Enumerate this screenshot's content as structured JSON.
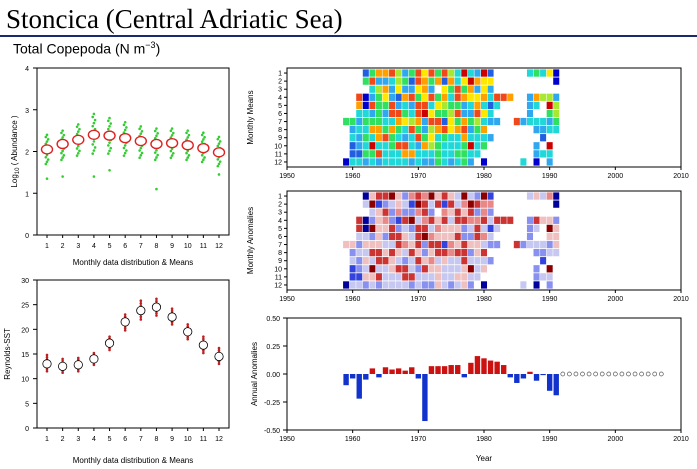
{
  "header": {
    "title": "Stoncica (Central Adriatic Sea)",
    "subtitle_main": "Total Copepoda (N m",
    "subtitle_sup": "−3",
    "subtitle_end": ")"
  },
  "colors": {
    "mean_circle": "#dd2222",
    "dots_abundance": "#33cc33",
    "dots_sst": "#bb2222",
    "anomaly_positive": "#cc1111",
    "anomaly_negative": "#1133cc",
    "rule": "#1a2a6c"
  },
  "chart_data": [
    {
      "id": "abundance_means",
      "type": "scatter",
      "ylabel_main": "Log",
      "ylabel_sub": "10",
      "ylabel_end": " ( Abundance )",
      "xlabel": "Monthly data distribution & Means",
      "x": [
        1,
        2,
        3,
        4,
        5,
        6,
        7,
        8,
        9,
        10,
        11,
        12
      ],
      "y_mean": [
        2.05,
        2.18,
        2.28,
        2.4,
        2.38,
        2.32,
        2.25,
        2.18,
        2.2,
        2.15,
        2.08,
        1.98
      ],
      "y_range_low": [
        1.7,
        1.8,
        1.9,
        1.95,
        1.95,
        1.9,
        1.85,
        1.8,
        1.85,
        1.8,
        1.75,
        1.65
      ],
      "y_range_high": [
        2.4,
        2.5,
        2.65,
        2.9,
        2.8,
        2.7,
        2.6,
        2.55,
        2.55,
        2.5,
        2.45,
        2.35
      ],
      "outliers": [
        [
          1,
          1.35
        ],
        [
          2,
          1.4
        ],
        [
          4,
          1.4
        ],
        [
          5,
          1.55
        ],
        [
          8,
          1.1
        ],
        [
          12,
          1.45
        ]
      ],
      "ylim": [
        0,
        4
      ],
      "yticks": [
        "0",
        "1",
        "2",
        "3",
        "4"
      ],
      "xticks": [
        "1",
        "2",
        "3",
        "4",
        "5",
        "6",
        "7",
        "8",
        "9",
        "10",
        "11",
        "12"
      ]
    },
    {
      "id": "sst_means",
      "type": "scatter",
      "ylabel": "Reynolds-SST",
      "xlabel": "Monthly data distribution & Means",
      "x": [
        1,
        2,
        3,
        4,
        5,
        6,
        7,
        8,
        9,
        10,
        11,
        12
      ],
      "y_mean": [
        13.0,
        12.5,
        12.8,
        14.0,
        17.2,
        21.5,
        23.8,
        24.5,
        22.5,
        19.5,
        16.8,
        14.5
      ],
      "y_range_low": [
        11.5,
        11.2,
        11.5,
        12.8,
        15.8,
        19.8,
        22.0,
        22.8,
        21.0,
        18.0,
        15.2,
        13.0
      ],
      "y_range_high": [
        14.8,
        14.0,
        14.2,
        15.2,
        18.5,
        23.0,
        25.8,
        26.2,
        24.2,
        21.0,
        18.5,
        16.2
      ],
      "ylim": [
        0,
        30
      ],
      "yticks": [
        "0",
        "5",
        "10",
        "15",
        "20",
        "25",
        "30"
      ],
      "xticks": [
        "1",
        "2",
        "3",
        "4",
        "5",
        "6",
        "7",
        "8",
        "9",
        "10",
        "11",
        "12"
      ]
    },
    {
      "id": "monthly_means_grid",
      "type": "heatmap",
      "ylabel": "Monthly Means",
      "months": [
        "1",
        "2",
        "3",
        "4",
        "5",
        "6",
        "7",
        "8",
        "9",
        "10",
        "11",
        "12"
      ],
      "xlim": [
        1950,
        2010
      ],
      "xticks": [
        "1950",
        "1960",
        "1970",
        "1980",
        "1990",
        "2000",
        "2010"
      ],
      "years": [
        1959,
        1960,
        1961,
        1962,
        1963,
        1964,
        1965,
        1966,
        1967,
        1968,
        1969,
        1970,
        1971,
        1972,
        1973,
        1974,
        1975,
        1976,
        1977,
        1978,
        1979,
        1980,
        1981,
        1982,
        1983,
        1984,
        1985,
        1986,
        1987,
        1988,
        1989,
        1990,
        1991
      ],
      "palette": [
        "#0000cc",
        "#1f5fe0",
        "#2fa8f0",
        "#20d8d8",
        "#30e060",
        "#a8e830",
        "#ffe800",
        "#ffa000",
        "#f04818",
        "#cc0000"
      ],
      "note": "values are palette indices 0-9; -1 = no data",
      "values": [
        [
          -1,
          -1,
          -1,
          1,
          4,
          7,
          7,
          8,
          5,
          2,
          4,
          8,
          6,
          8,
          4,
          8,
          5,
          3,
          9,
          3,
          2,
          9,
          1,
          -1,
          -1,
          -1,
          -1,
          -1,
          3,
          4,
          3,
          6,
          0
        ],
        [
          -1,
          -1,
          -1,
          4,
          8,
          2,
          2,
          3,
          5,
          4,
          1,
          8,
          7,
          4,
          7,
          1,
          7,
          3,
          6,
          9,
          7,
          6,
          6,
          -1,
          -1,
          -1,
          -1,
          -1,
          -1,
          -1,
          -1,
          -1,
          0
        ],
        [
          -1,
          -1,
          -1,
          -1,
          3,
          5,
          7,
          2,
          6,
          2,
          2,
          6,
          7,
          2,
          -1,
          6,
          4,
          8,
          4,
          7,
          2,
          6,
          2,
          -1,
          -1,
          -1,
          -1,
          -1,
          -1,
          -1,
          -1,
          -1,
          -1
        ],
        [
          -1,
          -1,
          8,
          0,
          2,
          4,
          6,
          2,
          1,
          7,
          8,
          4,
          6,
          8,
          4,
          7,
          3,
          8,
          7,
          6,
          6,
          7,
          3,
          8,
          8,
          7,
          -1,
          -1,
          2,
          7,
          5,
          5,
          2
        ],
        [
          -1,
          -1,
          7,
          0,
          8,
          4,
          4,
          8,
          2,
          3,
          2,
          8,
          8,
          3,
          6,
          5,
          4,
          4,
          2,
          3,
          7,
          3,
          1,
          3,
          -1,
          -1,
          -1,
          -1,
          2,
          3,
          -1,
          9,
          5
        ],
        [
          -1,
          -1,
          3,
          3,
          2,
          4,
          2,
          8,
          8,
          4,
          3,
          8,
          9,
          6,
          4,
          4,
          5,
          8,
          2,
          2,
          8,
          6,
          3,
          -1,
          -1,
          -1,
          -1,
          -1,
          2,
          -1,
          -1,
          4,
          5
        ],
        [
          4,
          4,
          2,
          4,
          4,
          4,
          3,
          3,
          7,
          6,
          5,
          7,
          2,
          8,
          8,
          1,
          6,
          4,
          7,
          4,
          5,
          3,
          2,
          2,
          -1,
          -1,
          8,
          2,
          3,
          3,
          3,
          2,
          4
        ],
        [
          -1,
          2,
          3,
          3,
          7,
          7,
          4,
          7,
          4,
          3,
          8,
          4,
          2,
          5,
          7,
          8,
          6,
          7,
          8,
          2,
          4,
          7,
          -1,
          -1,
          -1,
          -1,
          -1,
          -1,
          -1,
          2,
          2,
          3,
          3
        ],
        [
          -1,
          3,
          2,
          4,
          3,
          7,
          8,
          4,
          3,
          2,
          3,
          8,
          4,
          6,
          3,
          4,
          3,
          3,
          7,
          3,
          3,
          3,
          2,
          -1,
          -1,
          -1,
          -1,
          -1,
          -1,
          -1,
          1,
          -1,
          -1
        ],
        [
          -1,
          1,
          2,
          3,
          9,
          3,
          3,
          4,
          8,
          8,
          3,
          2,
          7,
          5,
          4,
          3,
          3,
          3,
          4,
          9,
          3,
          4,
          -1,
          -1,
          -1,
          -1,
          -1,
          -1,
          -1,
          2,
          -1,
          9,
          -1
        ],
        [
          -1,
          1,
          1,
          4,
          4,
          8,
          3,
          3,
          3,
          7,
          7,
          3,
          3,
          3,
          4,
          3,
          3,
          4,
          4,
          3,
          3,
          -1,
          -1,
          -1,
          -1,
          -1,
          -1,
          -1,
          -1,
          2,
          3,
          3,
          -1
        ],
        [
          0,
          3,
          3,
          2,
          3,
          2,
          3,
          3,
          3,
          3,
          2,
          3,
          2,
          2,
          4,
          3,
          2,
          3,
          4,
          2,
          -1,
          0,
          -1,
          -1,
          -1,
          -1,
          -1,
          3,
          -1,
          0,
          -1,
          2,
          -1
        ]
      ]
    },
    {
      "id": "monthly_anomalies_grid",
      "type": "heatmap",
      "ylabel": "Monthly Anomalies",
      "months": [
        "1",
        "2",
        "3",
        "4",
        "5",
        "6",
        "7",
        "8",
        "9",
        "10",
        "11",
        "12"
      ],
      "xlim": [
        1950,
        2010
      ],
      "xticks": [
        "1950",
        "1960",
        "1970",
        "1980",
        "1990",
        "2000",
        "2010"
      ],
      "years": [
        1959,
        1960,
        1961,
        1962,
        1963,
        1964,
        1965,
        1966,
        1967,
        1968,
        1969,
        1970,
        1971,
        1972,
        1973,
        1974,
        1975,
        1976,
        1977,
        1978,
        1979,
        1980,
        1981,
        1982,
        1983,
        1984,
        1985,
        1986,
        1987,
        1988,
        1989,
        1990,
        1991
      ],
      "palette": [
        "#00009a",
        "#3344dd",
        "#8890f0",
        "#c6c8f2",
        "#f0c0c0",
        "#e88888",
        "#cc3333",
        "#8a0000"
      ],
      "note": "values are palette indices 0-7 (blue=negative, red=positive); -1 = no data",
      "values": [
        [
          -1,
          -1,
          -1,
          0,
          4,
          6,
          6,
          7,
          4,
          2,
          5,
          6,
          5,
          7,
          4,
          6,
          4,
          3,
          7,
          3,
          2,
          7,
          1,
          -1,
          -1,
          -1,
          -1,
          -1,
          3,
          4,
          3,
          5,
          0
        ],
        [
          -1,
          -1,
          -1,
          3,
          7,
          1,
          2,
          3,
          4,
          3,
          1,
          7,
          6,
          3,
          6,
          1,
          6,
          3,
          5,
          7,
          6,
          5,
          5,
          -1,
          -1,
          -1,
          -1,
          -1,
          -1,
          -1,
          -1,
          -1,
          0
        ],
        [
          -1,
          -1,
          -1,
          -1,
          3,
          4,
          6,
          2,
          5,
          2,
          2,
          5,
          6,
          2,
          -1,
          5,
          4,
          6,
          4,
          6,
          2,
          5,
          2,
          -1,
          -1,
          -1,
          -1,
          -1,
          -1,
          -1,
          -1,
          -1,
          -1
        ],
        [
          -1,
          -1,
          6,
          0,
          2,
          4,
          5,
          2,
          1,
          6,
          7,
          3,
          5,
          6,
          4,
          6,
          3,
          6,
          6,
          5,
          5,
          6,
          3,
          6,
          6,
          6,
          -1,
          -1,
          2,
          6,
          4,
          4,
          2
        ],
        [
          -1,
          -1,
          6,
          0,
          7,
          4,
          4,
          6,
          2,
          3,
          2,
          6,
          6,
          3,
          5,
          4,
          4,
          4,
          2,
          3,
          6,
          3,
          1,
          3,
          -1,
          -1,
          -1,
          -1,
          2,
          3,
          -1,
          7,
          4
        ],
        [
          -1,
          -1,
          3,
          3,
          2,
          4,
          2,
          6,
          6,
          4,
          3,
          6,
          7,
          5,
          4,
          4,
          4,
          6,
          2,
          2,
          6,
          5,
          3,
          -1,
          -1,
          -1,
          -1,
          -1,
          2,
          -1,
          -1,
          4,
          4
        ],
        [
          4,
          4,
          2,
          4,
          4,
          4,
          3,
          3,
          6,
          5,
          4,
          6,
          2,
          6,
          6,
          1,
          5,
          4,
          6,
          4,
          4,
          3,
          2,
          2,
          -1,
          -1,
          6,
          2,
          3,
          3,
          3,
          2,
          4
        ],
        [
          -1,
          2,
          3,
          3,
          6,
          6,
          4,
          6,
          4,
          3,
          6,
          4,
          2,
          4,
          6,
          6,
          5,
          6,
          6,
          2,
          4,
          6,
          -1,
          -1,
          -1,
          -1,
          -1,
          -1,
          -1,
          2,
          2,
          3,
          3
        ],
        [
          -1,
          3,
          2,
          4,
          3,
          6,
          6,
          4,
          3,
          2,
          3,
          6,
          4,
          5,
          3,
          4,
          3,
          3,
          6,
          3,
          3,
          3,
          2,
          -1,
          -1,
          -1,
          -1,
          -1,
          -1,
          -1,
          1,
          -1,
          -1
        ],
        [
          -1,
          1,
          2,
          3,
          7,
          3,
          3,
          4,
          6,
          6,
          3,
          2,
          6,
          4,
          4,
          3,
          3,
          3,
          4,
          7,
          3,
          4,
          -1,
          -1,
          -1,
          -1,
          -1,
          -1,
          -1,
          2,
          -1,
          7,
          -1
        ],
        [
          -1,
          1,
          1,
          4,
          4,
          6,
          3,
          3,
          3,
          6,
          6,
          3,
          3,
          3,
          4,
          3,
          3,
          4,
          4,
          3,
          3,
          -1,
          -1,
          -1,
          -1,
          -1,
          -1,
          -1,
          -1,
          2,
          3,
          3,
          -1
        ],
        [
          0,
          3,
          3,
          2,
          3,
          2,
          3,
          3,
          3,
          3,
          2,
          3,
          2,
          2,
          4,
          3,
          2,
          3,
          4,
          2,
          -1,
          0,
          -1,
          -1,
          -1,
          -1,
          -1,
          3,
          -1,
          0,
          -1,
          2,
          -1
        ]
      ]
    },
    {
      "id": "annual_anomalies",
      "type": "bar",
      "ylabel": "Annual Anomalies",
      "xlabel": "Year",
      "xlim": [
        1950,
        2010
      ],
      "ylim": [
        -0.5,
        0.5
      ],
      "yticks": [
        "0.50",
        "0.25",
        "0.00",
        "-0.25",
        "-0.50"
      ],
      "ytick_values": [
        0.5,
        0.25,
        0,
        -0.25,
        -0.5
      ],
      "xticks": [
        "1950",
        "1960",
        "1970",
        "1980",
        "1990",
        "2000",
        "2010"
      ],
      "years": [
        1959,
        1960,
        1961,
        1962,
        1963,
        1964,
        1965,
        1966,
        1967,
        1968,
        1969,
        1970,
        1971,
        1972,
        1973,
        1974,
        1975,
        1976,
        1977,
        1978,
        1979,
        1980,
        1981,
        1982,
        1983,
        1984,
        1985,
        1986,
        1987,
        1988,
        1989,
        1990,
        1991
      ],
      "values": [
        -0.1,
        -0.04,
        -0.22,
        -0.05,
        0.05,
        -0.03,
        0.06,
        0.04,
        0.05,
        0.03,
        0.06,
        -0.04,
        -0.42,
        0.07,
        0.07,
        0.07,
        0.08,
        0.08,
        -0.03,
        0.1,
        0.16,
        0.14,
        0.12,
        0.11,
        0.08,
        -0.03,
        -0.08,
        -0.04,
        0.02,
        -0.06,
        -0.01,
        -0.15,
        -0.19
      ],
      "empty_years": [
        1992,
        1993,
        1994,
        1995,
        1996,
        1997,
        1998,
        1999,
        2000,
        2001,
        2002,
        2003,
        2004,
        2005,
        2006,
        2007
      ]
    }
  ]
}
